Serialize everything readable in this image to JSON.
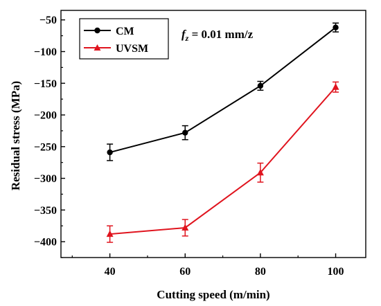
{
  "chart_data": {
    "type": "line",
    "xlabel": "Cutting speed (m/min)",
    "ylabel": "Residual stress (MPa)",
    "x": [
      40,
      60,
      80,
      100
    ],
    "xlim": [
      27,
      108
    ],
    "ylim": [
      -425,
      -35
    ],
    "xticks": [
      "40",
      "60",
      "80",
      "100"
    ],
    "yticks": [
      "−50",
      "−100",
      "−150",
      "−200",
      "−250",
      "−300",
      "−350",
      "−400"
    ],
    "ytick_values": [
      -50,
      -100,
      -150,
      -200,
      -250,
      -300,
      -350,
      -400
    ],
    "grid": false,
    "legend_position": "top-left",
    "annotation": {
      "text_f": "f",
      "text_sub": "z",
      "text_rest": " = 0.01 mm/z"
    },
    "series": [
      {
        "name": "CM",
        "color": "#000000",
        "marker": "circle",
        "values": [
          -259,
          -228,
          -154,
          -62
        ],
        "errors": [
          13,
          11,
          7,
          7
        ]
      },
      {
        "name": "UVSM",
        "color": "#e0141e",
        "marker": "triangle",
        "values": [
          -388,
          -378,
          -291,
          -156
        ],
        "errors": [
          13,
          13,
          15,
          8
        ]
      }
    ]
  }
}
